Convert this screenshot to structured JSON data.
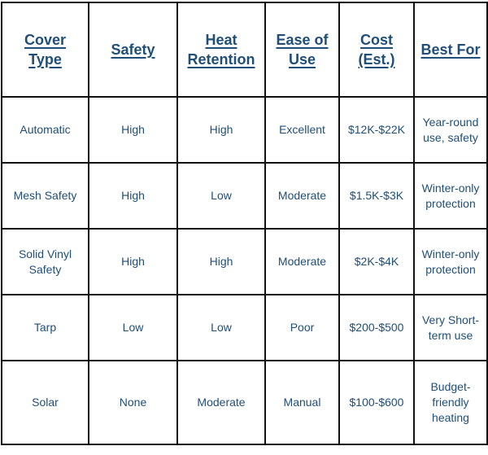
{
  "table": {
    "headers": [
      "Cover Type",
      "Safety",
      "Heat Retention",
      "Ease of Use",
      "Cost (Est.)",
      "Best For"
    ],
    "rows": [
      [
        "Automatic",
        "High",
        "High",
        "Excellent",
        "$12K-$22K",
        "Year-round use, safety"
      ],
      [
        "Mesh Safety",
        "High",
        "Low",
        "Moderate",
        "$1.5K-$3K",
        "Winter-only protection"
      ],
      [
        "Solid Vinyl Safety",
        "High",
        "High",
        "Moderate",
        "$2K-$4K",
        "Winter-only protection"
      ],
      [
        "Tarp",
        "Low",
        "Low",
        "Poor",
        "$200-$500",
        "Very Short-term use"
      ],
      [
        "Solar",
        "None",
        "Moderate",
        "Manual",
        "$100-$600",
        "Budget-friendly heating"
      ]
    ]
  },
  "colors": {
    "text": "#1f4e79",
    "border": "#111111",
    "background": "#ffffff"
  }
}
